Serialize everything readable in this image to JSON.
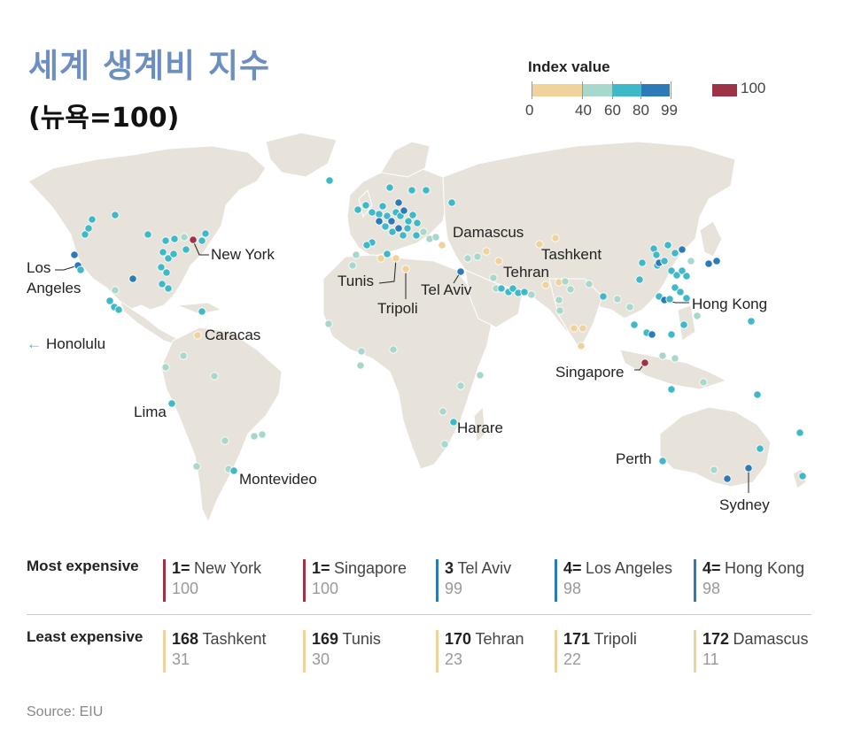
{
  "title": "세계 생계비 지수",
  "subtitle": "(뉴욕=100)",
  "legend": {
    "title": "Index value",
    "ticks": [
      "0",
      "40",
      "60",
      "80",
      "99"
    ],
    "max_label": "100",
    "colors": {
      "band_0_40": "#f0d29c",
      "band_40_60": "#a8d8cc",
      "band_60_80": "#3fb8c8",
      "band_80_99": "#2c7bb8",
      "max_100": "#9e3347",
      "land": "#e7e3da",
      "border": "#ffffff"
    }
  },
  "labels": {
    "new_york": "New York",
    "los_angeles_1": "Los",
    "los_angeles_2": "Angeles",
    "honolulu": "Honolulu",
    "honolulu_arrow": "←",
    "caracas": "Caracas",
    "lima": "Lima",
    "montevideo": "Montevideo",
    "tunis": "Tunis",
    "tripoli": "Tripoli",
    "tel_aviv": "Tel Aviv",
    "damascus": "Damascus",
    "tehran": "Tehran",
    "tashkent": "Tashkent",
    "harare": "Harare",
    "hong_kong": "Hong Kong",
    "singapore": "Singapore",
    "perth": "Perth",
    "sydney": "Sydney"
  },
  "most_expensive": {
    "heading": "Most expensive",
    "items": [
      {
        "rank": "1=",
        "city": "New York",
        "value": "100"
      },
      {
        "rank": "1=",
        "city": "Singapore",
        "value": "100"
      },
      {
        "rank": "3",
        "city": "Tel Aviv",
        "value": "99"
      },
      {
        "rank": "4=",
        "city": "Los Angeles",
        "value": "98"
      },
      {
        "rank": "4=",
        "city": "Hong Kong",
        "value": "98"
      }
    ]
  },
  "least_expensive": {
    "heading": "Least expensive",
    "items": [
      {
        "rank": "168",
        "city": "Tashkent",
        "value": "31"
      },
      {
        "rank": "169",
        "city": "Tunis",
        "value": "30"
      },
      {
        "rank": "170",
        "city": "Tehran",
        "value": "23"
      },
      {
        "rank": "171",
        "city": "Tripoli",
        "value": "22"
      },
      {
        "rank": "172",
        "city": "Damascus",
        "value": "11"
      }
    ]
  },
  "source": "Source: EIU"
}
